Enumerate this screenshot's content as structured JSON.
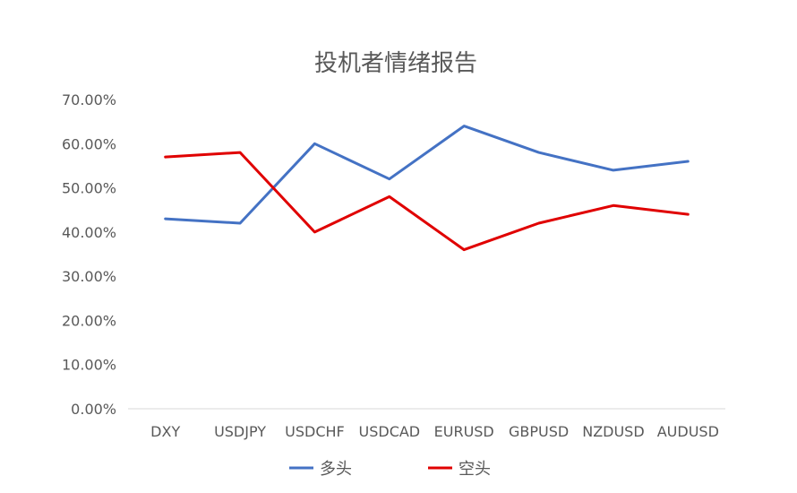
{
  "chart_data": {
    "type": "line",
    "title": "投机者情绪报告",
    "categories": [
      "DXY",
      "USDJPY",
      "USDCHF",
      "USDCAD",
      "EURUSD",
      "GBPUSD",
      "NZDUSD",
      "AUDUSD"
    ],
    "y_ticks": [
      "0.00%",
      "10.00%",
      "20.00%",
      "30.00%",
      "40.00%",
      "50.00%",
      "60.00%",
      "70.00%"
    ],
    "ylim": [
      0,
      70
    ],
    "y_unit": "percent",
    "grid": false,
    "legend_position": "bottom",
    "series": [
      {
        "name": "多头",
        "color": "#4472C4",
        "values": [
          43,
          42,
          60,
          52,
          64,
          58,
          54,
          56
        ]
      },
      {
        "name": "空头",
        "color": "#E00000",
        "values": [
          57,
          58,
          40,
          48,
          36,
          42,
          46,
          44
        ]
      }
    ]
  }
}
